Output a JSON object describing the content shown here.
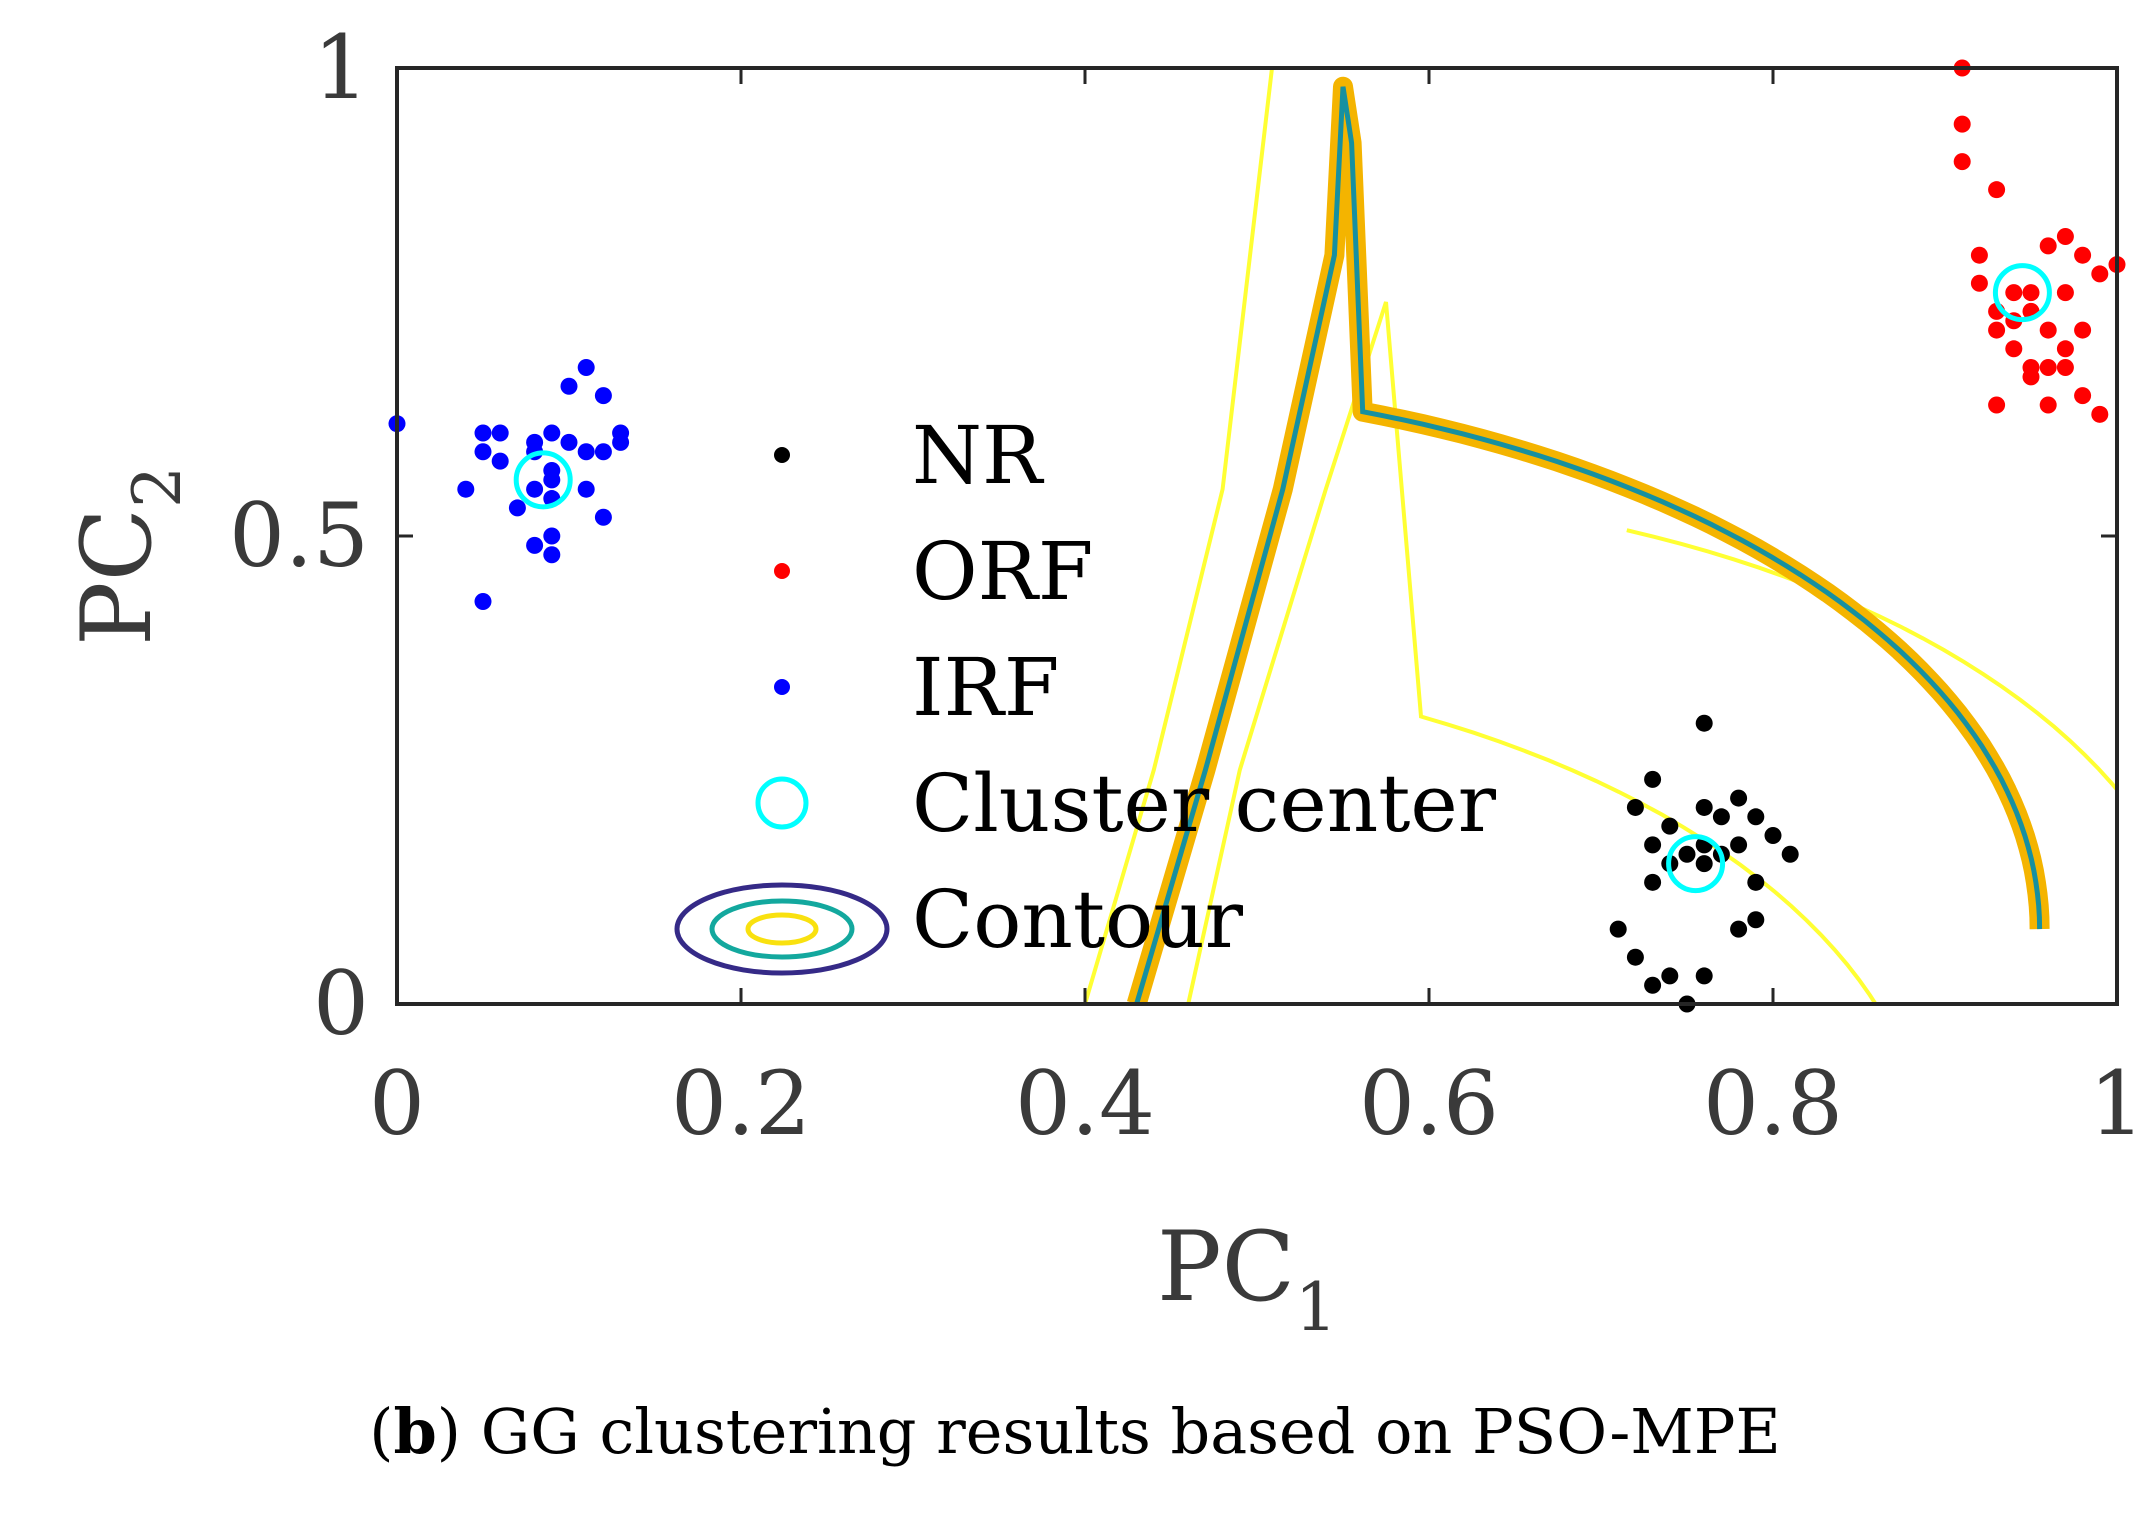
{
  "chart_data": {
    "type": "scatter",
    "title": "",
    "xlabel": "PC",
    "xlabel_sub": "1",
    "ylabel": "PC",
    "ylabel_sub": "2",
    "xlim": [
      0,
      1
    ],
    "ylim": [
      0,
      1
    ],
    "xticks": [
      0,
      0.2,
      0.4,
      0.6,
      0.8,
      1
    ],
    "xtick_labels": [
      "0",
      "0.2",
      "0.4",
      "0.6",
      "0.8",
      "1"
    ],
    "yticks": [
      0,
      0.5,
      1
    ],
    "ytick_labels": [
      "0",
      "0.5",
      "1"
    ],
    "grid": false,
    "legend_position": "center",
    "series": [
      {
        "name": "NR",
        "color": "#000000",
        "points": [
          [
            0.75,
            0.0
          ],
          [
            0.73,
            0.02
          ],
          [
            0.74,
            0.03
          ],
          [
            0.76,
            0.03
          ],
          [
            0.72,
            0.05
          ],
          [
            0.71,
            0.08
          ],
          [
            0.78,
            0.08
          ],
          [
            0.79,
            0.09
          ],
          [
            0.73,
            0.13
          ],
          [
            0.79,
            0.13
          ],
          [
            0.74,
            0.15
          ],
          [
            0.76,
            0.15
          ],
          [
            0.77,
            0.16
          ],
          [
            0.75,
            0.16
          ],
          [
            0.81,
            0.16
          ],
          [
            0.73,
            0.17
          ],
          [
            0.76,
            0.17
          ],
          [
            0.78,
            0.17
          ],
          [
            0.8,
            0.18
          ],
          [
            0.74,
            0.19
          ],
          [
            0.77,
            0.2
          ],
          [
            0.79,
            0.2
          ],
          [
            0.72,
            0.21
          ],
          [
            0.76,
            0.21
          ],
          [
            0.78,
            0.22
          ],
          [
            0.73,
            0.24
          ],
          [
            0.76,
            0.3
          ]
        ]
      },
      {
        "name": "ORF",
        "color": "#ff0000",
        "points": [
          [
            0.91,
            1.0
          ],
          [
            0.91,
            0.94
          ],
          [
            0.91,
            0.9
          ],
          [
            0.93,
            0.87
          ],
          [
            0.92,
            0.8
          ],
          [
            0.96,
            0.81
          ],
          [
            0.97,
            0.82
          ],
          [
            0.98,
            0.8
          ],
          [
            1.0,
            0.79
          ],
          [
            0.99,
            0.78
          ],
          [
            0.92,
            0.77
          ],
          [
            0.94,
            0.76
          ],
          [
            0.95,
            0.76
          ],
          [
            0.97,
            0.76
          ],
          [
            0.93,
            0.74
          ],
          [
            0.95,
            0.74
          ],
          [
            0.94,
            0.73
          ],
          [
            0.93,
            0.72
          ],
          [
            0.96,
            0.72
          ],
          [
            0.98,
            0.72
          ],
          [
            0.94,
            0.7
          ],
          [
            0.97,
            0.7
          ],
          [
            0.95,
            0.68
          ],
          [
            0.96,
            0.68
          ],
          [
            0.97,
            0.68
          ],
          [
            0.98,
            0.65
          ],
          [
            0.93,
            0.64
          ],
          [
            0.96,
            0.64
          ],
          [
            0.99,
            0.63
          ],
          [
            0.95,
            0.67
          ]
        ]
      },
      {
        "name": "IRF",
        "color": "#0000ff",
        "points": [
          [
            0.0,
            0.62
          ],
          [
            0.05,
            0.43
          ],
          [
            0.09,
            0.48
          ],
          [
            0.08,
            0.49
          ],
          [
            0.09,
            0.5
          ],
          [
            0.07,
            0.53
          ],
          [
            0.12,
            0.52
          ],
          [
            0.04,
            0.55
          ],
          [
            0.08,
            0.55
          ],
          [
            0.11,
            0.55
          ],
          [
            0.09,
            0.56
          ],
          [
            0.06,
            0.58
          ],
          [
            0.09,
            0.57
          ],
          [
            0.05,
            0.59
          ],
          [
            0.11,
            0.59
          ],
          [
            0.12,
            0.59
          ],
          [
            0.08,
            0.6
          ],
          [
            0.1,
            0.6
          ],
          [
            0.13,
            0.6
          ],
          [
            0.05,
            0.61
          ],
          [
            0.06,
            0.61
          ],
          [
            0.13,
            0.61
          ],
          [
            0.09,
            0.61
          ],
          [
            0.08,
            0.59
          ],
          [
            0.12,
            0.65
          ],
          [
            0.1,
            0.66
          ],
          [
            0.11,
            0.68
          ],
          [
            0.09,
            0.54
          ]
        ]
      }
    ],
    "cluster_centers": {
      "name": "Cluster center",
      "color": "#00ffff",
      "points": [
        [
          0.085,
          0.56
        ],
        [
          0.755,
          0.15
        ],
        [
          0.945,
          0.76
        ]
      ]
    },
    "contours": {
      "name": "Contour",
      "legend_colors": [
        "#352a87",
        "#13a89e",
        "#f9e10f"
      ],
      "boundary_color": "#f4b400",
      "boundary_core_color": "#1690a0",
      "outer_color": "#ffff33"
    },
    "legend": [
      {
        "label": "NR",
        "marker": "dot",
        "color": "#000000"
      },
      {
        "label": "ORF",
        "marker": "dot",
        "color": "#ff0000"
      },
      {
        "label": "IRF",
        "marker": "dot",
        "color": "#0000ff"
      },
      {
        "label": "Cluster center",
        "marker": "circle",
        "color": "#00ffff"
      },
      {
        "label": "Contour",
        "marker": "ellipses",
        "color": "#352a87"
      }
    ]
  },
  "caption": {
    "label": "b",
    "text": " GG clustering results based on PSO-MPE"
  }
}
